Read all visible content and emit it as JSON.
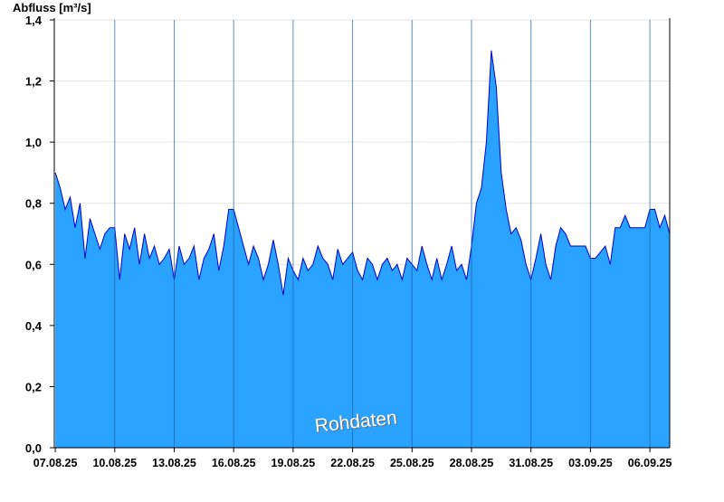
{
  "chart_data": {
    "type": "area",
    "ylabel": "Abfluss [m³/s]",
    "annotation": "Rohdaten",
    "ylim": [
      0,
      1.4
    ],
    "yticks": [
      "0,0",
      "0,2",
      "0,4",
      "0,6",
      "0,8",
      "1,0",
      "1,2",
      "1,4"
    ],
    "xticks": [
      "07.08.25",
      "10.08.25",
      "13.08.25",
      "16.08.25",
      "19.08.25",
      "22.08.25",
      "25.08.25",
      "28.08.25",
      "31.08.25",
      "03.09.25",
      "06.09.25"
    ],
    "grid": true,
    "fill_color": "#29a3ff",
    "line_color": "#0000cc",
    "series": [
      {
        "x_unit": "days since 07.08.25",
        "x": [
          0.0,
          0.25,
          0.5,
          0.75,
          1.0,
          1.25,
          1.5,
          1.75,
          2.0,
          2.25,
          2.5,
          2.75,
          3.0,
          3.25,
          3.5,
          3.75,
          4.0,
          4.25,
          4.5,
          4.75,
          5.0,
          5.25,
          5.5,
          5.75,
          6.0,
          6.25,
          6.5,
          6.75,
          7.0,
          7.25,
          7.5,
          7.75,
          8.0,
          8.25,
          8.5,
          8.75,
          9.0,
          9.25,
          9.5,
          9.75,
          10.0,
          10.25,
          10.5,
          10.75,
          11.0,
          11.25,
          11.5,
          11.75,
          12.0,
          12.25,
          12.5,
          12.75,
          13.0,
          13.25,
          13.5,
          13.75,
          14.0,
          14.25,
          14.5,
          14.75,
          15.0,
          15.25,
          15.5,
          15.75,
          16.0,
          16.25,
          16.5,
          16.75,
          17.0,
          17.25,
          17.5,
          17.75,
          18.0,
          18.25,
          18.5,
          18.75,
          19.0,
          19.25,
          19.5,
          19.75,
          20.0,
          20.25,
          20.5,
          20.75,
          21.0,
          21.25,
          21.5,
          21.75,
          22.0,
          22.25,
          22.5,
          22.75,
          23.0,
          23.25,
          23.5,
          23.75,
          24.0,
          24.25,
          24.5,
          24.75,
          25.0,
          25.25,
          25.5,
          25.75,
          26.0,
          26.25,
          26.5,
          26.75,
          27.0,
          27.25,
          27.5,
          27.75,
          28.0,
          28.25,
          28.5,
          28.75,
          29.0,
          29.25,
          29.5,
          29.75,
          30.0,
          30.25,
          30.5,
          30.75,
          31.0
        ],
        "y": [
          0.9,
          0.85,
          0.78,
          0.82,
          0.72,
          0.8,
          0.62,
          0.75,
          0.7,
          0.65,
          0.7,
          0.72,
          0.72,
          0.55,
          0.7,
          0.65,
          0.72,
          0.6,
          0.7,
          0.62,
          0.66,
          0.6,
          0.62,
          0.65,
          0.55,
          0.66,
          0.6,
          0.62,
          0.66,
          0.55,
          0.62,
          0.65,
          0.7,
          0.58,
          0.66,
          0.78,
          0.78,
          0.72,
          0.66,
          0.6,
          0.66,
          0.62,
          0.55,
          0.6,
          0.68,
          0.6,
          0.5,
          0.62,
          0.58,
          0.55,
          0.62,
          0.58,
          0.6,
          0.66,
          0.62,
          0.6,
          0.55,
          0.65,
          0.6,
          0.62,
          0.64,
          0.58,
          0.55,
          0.62,
          0.6,
          0.55,
          0.6,
          0.62,
          0.58,
          0.6,
          0.55,
          0.62,
          0.6,
          0.58,
          0.66,
          0.6,
          0.55,
          0.62,
          0.55,
          0.6,
          0.66,
          0.58,
          0.6,
          0.55,
          0.66,
          0.8,
          0.85,
          1.0,
          1.3,
          1.18,
          0.9,
          0.78,
          0.7,
          0.72,
          0.68,
          0.6,
          0.55,
          0.62,
          0.7,
          0.6,
          0.55,
          0.66,
          0.72,
          0.7,
          0.66,
          0.66,
          0.66,
          0.66,
          0.62,
          0.62,
          0.64,
          0.66,
          0.6,
          0.72,
          0.72,
          0.76,
          0.72,
          0.72,
          0.72,
          0.72,
          0.78,
          0.78,
          0.72,
          0.76,
          0.7
        ]
      }
    ]
  }
}
